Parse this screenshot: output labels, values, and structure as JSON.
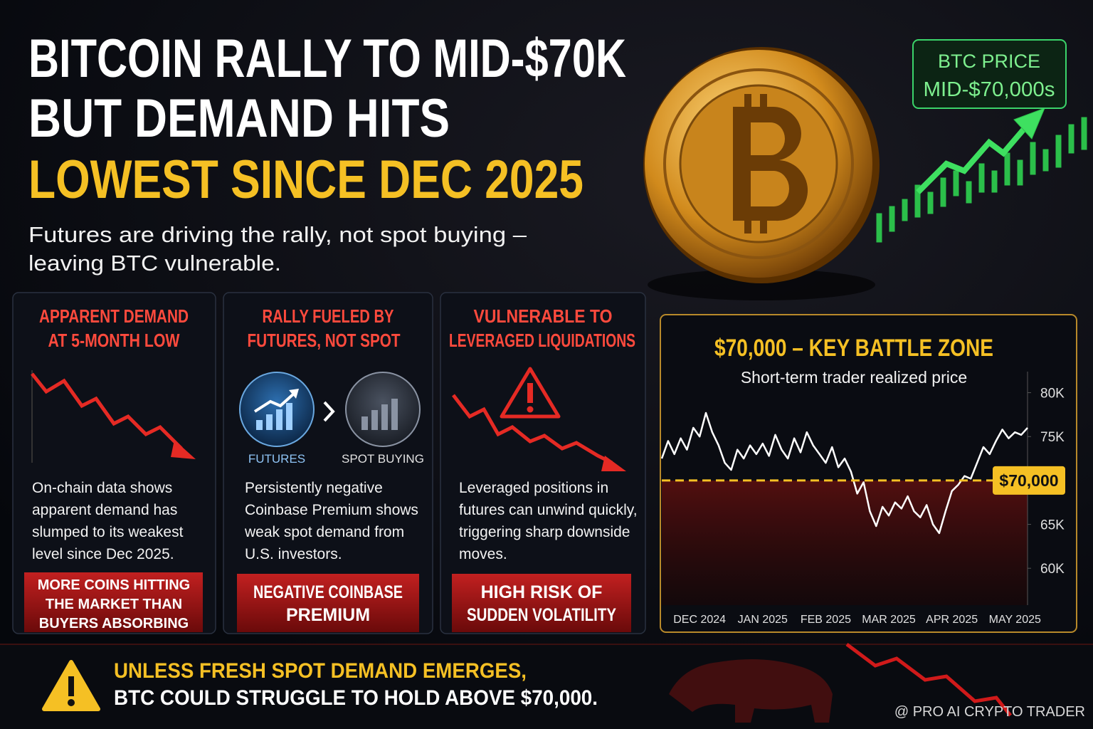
{
  "header": {
    "title_lines": [
      "BITCOIN RALLY TO MID-$70K",
      "BUT DEMAND HITS"
    ],
    "title_highlight": "LOWEST SINCE DEC 2025",
    "subtitle_lines": [
      "Futures are driving the rally, not spot buying –",
      "leaving BTC vulnerable."
    ]
  },
  "price_badge": {
    "lines": [
      "BTC PRICE",
      "MID-$70,000s"
    ]
  },
  "cards": [
    {
      "title_lines": [
        "APPARENT DEMAND",
        "AT 5-MONTH LOW"
      ],
      "body_lines": [
        "On-chain data shows",
        "apparent demand has",
        "slumped to its weakest",
        "level since Dec 2025."
      ],
      "callout_lines": [
        "MORE COINS HITTING",
        "THE MARKET THAN",
        "BUYERS ABSORBING"
      ]
    },
    {
      "title_lines": [
        "RALLY FUELED BY",
        "FUTURES, NOT SPOT"
      ],
      "icon_labels": [
        "FUTURES",
        "SPOT BUYING"
      ],
      "body_lines": [
        "Persistently negative",
        "Coinbase Premium shows",
        "weak spot demand from",
        "U.S. investors."
      ],
      "callout_lines": [
        "NEGATIVE COINBASE",
        "PREMIUM"
      ]
    },
    {
      "title_lines": [
        "VULNERABLE TO",
        "LEVERAGED LIQUIDATIONS"
      ],
      "body_lines": [
        "Leveraged positions in",
        "futures can unwind quickly,",
        "triggering sharp downside",
        "moves."
      ],
      "callout_lines": [
        "HIGH RISK OF",
        "SUDDEN VOLATILITY"
      ]
    }
  ],
  "chart_data": {
    "type": "line",
    "title": "$70,000 – KEY BATTLE ZONE",
    "subtitle": "Short-term trader realized price",
    "color": "#ffffff",
    "categories": [
      null,
      null,
      null,
      null,
      null,
      null,
      "DEC 2024",
      null,
      null,
      null,
      null,
      null,
      null,
      null,
      null,
      null,
      "JAN 2025",
      null,
      null,
      null,
      null,
      null,
      null,
      null,
      null,
      null,
      "FEB 2025",
      null,
      null,
      null,
      null,
      null,
      null,
      null,
      null,
      null,
      "MAR 2025",
      null,
      null,
      null,
      null,
      null,
      null,
      null,
      null,
      null,
      "APR 2025",
      null,
      null,
      null,
      null,
      null,
      null,
      null,
      null,
      null,
      "MAY 2025",
      null,
      null
    ],
    "values": [
      72500,
      74500,
      73000,
      74800,
      73500,
      76000,
      75000,
      77700,
      75500,
      74000,
      72000,
      71200,
      73500,
      72500,
      74000,
      73000,
      74200,
      72800,
      75200,
      73500,
      72500,
      74800,
      73200,
      75500,
      74000,
      73000,
      72000,
      73800,
      71500,
      72500,
      71000,
      68500,
      69800,
      66500,
      64800,
      67000,
      66000,
      67500,
      66800,
      68200,
      66500,
      65800,
      67200,
      65000,
      64000,
      66500,
      68800,
      69500,
      70500,
      70200,
      72000,
      73800,
      73000,
      74500,
      75800,
      74800,
      75500,
      75200,
      76000
    ],
    "ylim": [
      55800,
      82400
    ],
    "yticks": [
      {
        "value": 80000,
        "label": "80K"
      },
      {
        "value": 75000,
        "label": "75K"
      },
      {
        "value": 65000,
        "label": "65K"
      },
      {
        "value": 60000,
        "label": "60K"
      }
    ],
    "reference": {
      "value": 70000,
      "label": "$70,000"
    }
  },
  "footer": {
    "lines": [
      "UNLESS FRESH SPOT DEMAND EMERGES,",
      "BTC COULD STRUGGLE TO HOLD ABOVE $70,000."
    ],
    "watermark": "@ PRO AI CRYPTO TRADER"
  }
}
